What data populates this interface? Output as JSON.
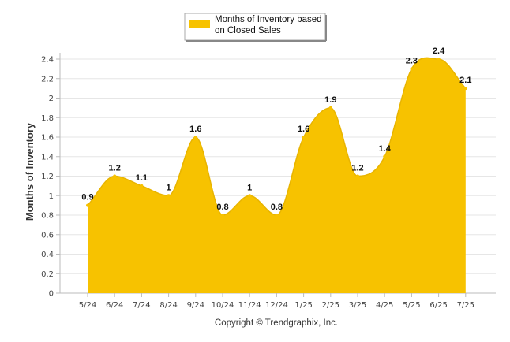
{
  "chart_data": {
    "type": "area",
    "categories": [
      "5/24",
      "6/24",
      "7/24",
      "8/24",
      "9/24",
      "10/24",
      "11/24",
      "12/24",
      "1/25",
      "2/25",
      "3/25",
      "4/25",
      "5/25",
      "6/25",
      "7/25"
    ],
    "series": [
      {
        "name": "Months of Inventory based on Closed Sales",
        "values": [
          0.9,
          1.2,
          1.1,
          1,
          1.6,
          0.8,
          1,
          0.8,
          1.6,
          1.9,
          1.2,
          1.4,
          2.3,
          2.4,
          2.1
        ],
        "labels": [
          "0.9",
          "1.2",
          "1.1",
          "1",
          "1.6",
          "0.8",
          "1",
          "0.8",
          "1.6",
          "1.9",
          "1.2",
          "1.4",
          "2.3",
          "2.4",
          "2.1"
        ],
        "color": "#f7c200"
      }
    ],
    "legend_lines": [
      "Months of Inventory based",
      "on Closed Sales"
    ],
    "legend_placement": "top-center",
    "ylabel": "Months of Inventory",
    "ylim": [
      0,
      2.4
    ],
    "yticks": [
      0,
      0.2,
      0.4,
      0.6,
      0.8,
      1,
      1.2,
      1.4,
      1.6,
      1.8,
      2,
      2.2,
      2.4
    ],
    "ytick_labels": [
      "0",
      "0.2",
      "0.4",
      "0.6",
      "0.8",
      "1",
      "1.2",
      "1.4",
      "1.6",
      "1.8",
      "2",
      "2.2",
      "2.4"
    ],
    "grid": true,
    "grid_color": "#e6e6e6",
    "credit": "Copyright © Trendgraphix, Inc."
  }
}
